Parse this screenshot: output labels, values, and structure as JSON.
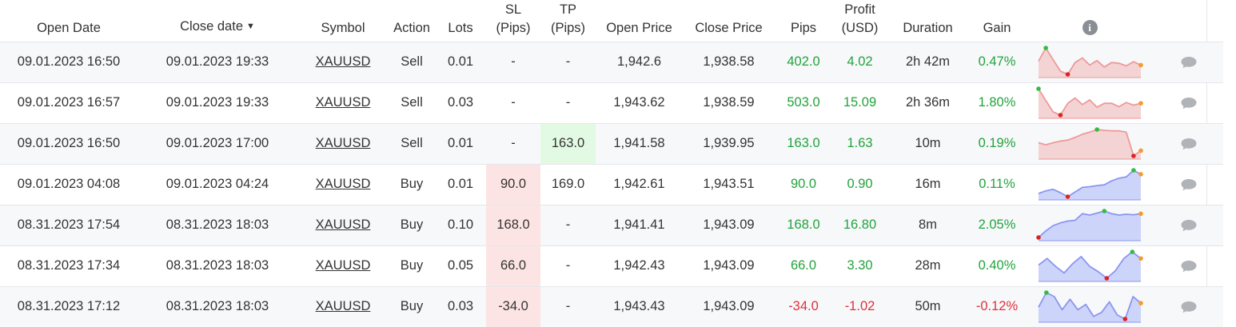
{
  "headers": {
    "open_date": "Open Date",
    "close_date": "Close date",
    "symbol": "Symbol",
    "action": "Action",
    "lots": "Lots",
    "sl_line1": "SL",
    "sl_line2": "(Pips)",
    "tp_line1": "TP",
    "tp_line2": "(Pips)",
    "open_price": "Open Price",
    "close_price": "Close Price",
    "pips": "Pips",
    "profit_line1": "Profit",
    "profit_line2": "(USD)",
    "duration": "Duration",
    "gain": "Gain",
    "info_icon": "i"
  },
  "sort": {
    "column": "close_date",
    "direction": "desc",
    "arrow": "▼"
  },
  "colors": {
    "positive": "#22a33c",
    "negative": "#e0303a",
    "sl_hit_bg": "#fde4e4",
    "tp_hit_bg": "#e2fae3",
    "sell_line": "#ee9a9a",
    "sell_fill": "#f3d3d3",
    "buy_line": "#8a96f0",
    "buy_fill": "#cdd4fa",
    "max_marker": "#33bb44",
    "min_marker": "#dd2222",
    "end_marker": "#f59a2a",
    "comment_icon": "#b0b3b7"
  },
  "rows": [
    {
      "open_date": "09.01.2023 16:50",
      "close_date": "09.01.2023 19:33",
      "symbol": "XAUUSD",
      "action": "Sell",
      "lots": "0.01",
      "sl": "-",
      "tp": "-",
      "open_price": "1,942.6",
      "close_price": "1,938.58",
      "pips": "402.0",
      "profit": "4.02",
      "duration": "2h 42m",
      "gain": "0.47%",
      "sl_hit": false,
      "tp_hit": false,
      "positive": true,
      "spark": {
        "series": [
          0.5,
          1.0,
          0.55,
          0.12,
          0.0,
          0.45,
          0.62,
          0.35,
          0.52,
          0.28,
          0.45,
          0.42,
          0.32,
          0.48,
          0.35
        ],
        "max_index": 1,
        "min_index": 4
      }
    },
    {
      "open_date": "09.01.2023 16:57",
      "close_date": "09.01.2023 19:33",
      "symbol": "XAUUSD",
      "action": "Sell",
      "lots": "0.03",
      "sl": "-",
      "tp": "-",
      "open_price": "1,943.62",
      "close_price": "1,938.59",
      "pips": "503.0",
      "profit": "15.09",
      "duration": "2h 36m",
      "gain": "1.80%",
      "sl_hit": false,
      "tp_hit": false,
      "positive": true,
      "spark": {
        "series": [
          1.0,
          0.55,
          0.12,
          0.0,
          0.45,
          0.65,
          0.4,
          0.58,
          0.3,
          0.45,
          0.45,
          0.32,
          0.48,
          0.38,
          0.45
        ],
        "max_index": 0,
        "min_index": 3
      }
    },
    {
      "open_date": "09.01.2023 16:50",
      "close_date": "09.01.2023 17:00",
      "symbol": "XAUUSD",
      "action": "Sell",
      "lots": "0.01",
      "sl": "-",
      "tp": "163.0",
      "open_price": "1,941.58",
      "close_price": "1,939.95",
      "pips": "163.0",
      "profit": "1.63",
      "duration": "10m",
      "gain": "0.19%",
      "sl_hit": false,
      "tp_hit": true,
      "positive": true,
      "spark": {
        "series": [
          0.5,
          0.42,
          0.5,
          0.56,
          0.6,
          0.7,
          0.82,
          0.9,
          1.0,
          0.97,
          0.95,
          0.95,
          0.9,
          0.0,
          0.2
        ],
        "max_index": 8,
        "min_index": 13
      }
    },
    {
      "open_date": "09.01.2023 04:08",
      "close_date": "09.01.2023 04:24",
      "symbol": "XAUUSD",
      "action": "Buy",
      "lots": "0.01",
      "sl": "90.0",
      "tp": "169.0",
      "open_price": "1,942.61",
      "close_price": "1,943.51",
      "pips": "90.0",
      "profit": "0.90",
      "duration": "16m",
      "gain": "0.11%",
      "sl_hit": true,
      "tp_hit": false,
      "positive": true,
      "spark": {
        "series": [
          0.12,
          0.22,
          0.28,
          0.15,
          0.0,
          0.18,
          0.35,
          0.38,
          0.42,
          0.45,
          0.6,
          0.7,
          0.75,
          1.0,
          0.85
        ],
        "max_index": 13,
        "min_index": 4
      }
    },
    {
      "open_date": "08.31.2023 17:54",
      "close_date": "08.31.2023 18:03",
      "symbol": "XAUUSD",
      "action": "Buy",
      "lots": "0.10",
      "sl": "168.0",
      "tp": "-",
      "open_price": "1,941.41",
      "close_price": "1,943.09",
      "pips": "168.0",
      "profit": "16.80",
      "duration": "8m",
      "gain": "2.05%",
      "sl_hit": true,
      "tp_hit": false,
      "positive": true,
      "spark": {
        "series": [
          0.0,
          0.25,
          0.45,
          0.55,
          0.62,
          0.65,
          0.9,
          0.85,
          0.92,
          1.0,
          0.9,
          0.85,
          0.88,
          0.86,
          0.9
        ],
        "max_index": 9,
        "min_index": 0
      }
    },
    {
      "open_date": "08.31.2023 17:34",
      "close_date": "08.31.2023 18:03",
      "symbol": "XAUUSD",
      "action": "Buy",
      "lots": "0.05",
      "sl": "66.0",
      "tp": "-",
      "open_price": "1,942.43",
      "close_price": "1,943.09",
      "pips": "66.0",
      "profit": "3.30",
      "duration": "28m",
      "gain": "0.40%",
      "sl_hit": true,
      "tp_hit": false,
      "positive": true,
      "spark": {
        "series": [
          0.5,
          0.75,
          0.45,
          0.2,
          0.55,
          0.82,
          0.45,
          0.25,
          0.0,
          0.28,
          0.75,
          1.0,
          0.75
        ],
        "max_index": 11,
        "min_index": 8
      }
    },
    {
      "open_date": "08.31.2023 17:12",
      "close_date": "08.31.2023 18:03",
      "symbol": "XAUUSD",
      "action": "Buy",
      "lots": "0.03",
      "sl": "-34.0",
      "tp": "-",
      "open_price": "1,943.43",
      "close_price": "1,943.09",
      "pips": "-34.0",
      "profit": "-1.02",
      "duration": "50m",
      "gain": "-0.12%",
      "sl_hit": true,
      "tp_hit": false,
      "positive": false,
      "spark": {
        "series": [
          0.45,
          1.0,
          0.85,
          0.35,
          0.75,
          0.35,
          0.55,
          0.1,
          0.25,
          0.65,
          0.15,
          0.0,
          0.85,
          0.6
        ],
        "max_index": 1,
        "min_index": 11
      }
    }
  ]
}
